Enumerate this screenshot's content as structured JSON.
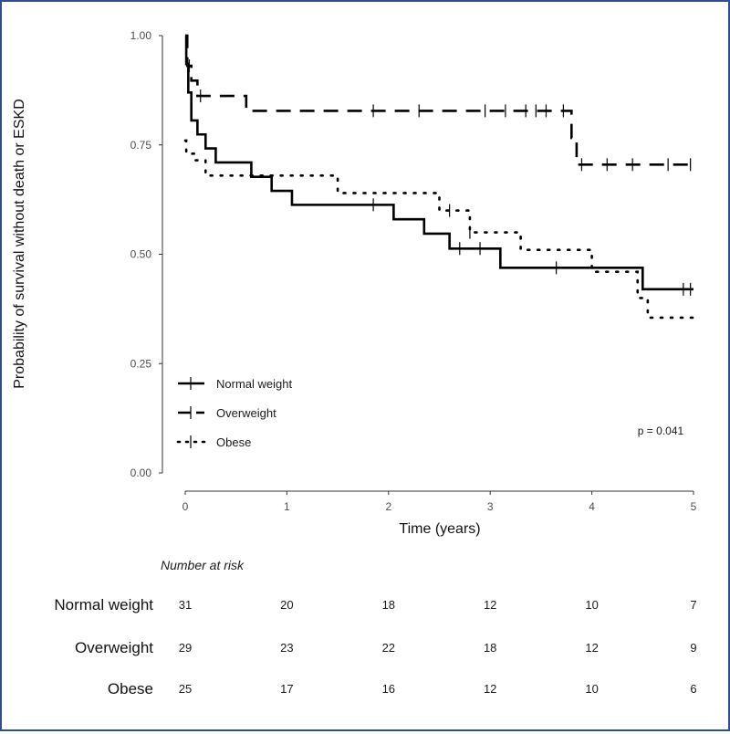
{
  "chart_data": {
    "type": "line",
    "subtype": "kaplan-meier step curves",
    "xlabel": "Time (years)",
    "ylabel": "Probability of survival without death or ESKD",
    "xlim": [
      0,
      5
    ],
    "ylim": [
      0,
      1
    ],
    "x_ticks": [
      "0",
      "1",
      "2",
      "3",
      "4",
      "5"
    ],
    "y_ticks": [
      "0.00",
      "0.25",
      "0.50",
      "0.75",
      "1.00"
    ],
    "grid": false,
    "legend_position": "bottom-left",
    "annotation": "p = 0.041",
    "series": [
      {
        "name": "Normal weight",
        "line_style": "solid",
        "color": "#000000",
        "steps": [
          [
            0,
            1.0
          ],
          [
            0.01,
            0.935
          ],
          [
            0.03,
            0.87
          ],
          [
            0.06,
            0.806
          ],
          [
            0.12,
            0.774
          ],
          [
            0.2,
            0.742
          ],
          [
            0.3,
            0.71
          ],
          [
            0.65,
            0.677
          ],
          [
            0.85,
            0.645
          ],
          [
            1.05,
            0.613
          ],
          [
            2.05,
            0.58
          ],
          [
            2.35,
            0.547
          ],
          [
            2.6,
            0.513
          ],
          [
            3.1,
            0.469
          ],
          [
            4.5,
            0.42
          ],
          [
            5.0,
            0.42
          ]
        ],
        "censor_times": [
          1.85,
          2.7,
          2.9,
          3.65,
          4.9,
          4.97
        ]
      },
      {
        "name": "Overweight",
        "line_style": "dashed",
        "color": "#000000",
        "steps": [
          [
            0,
            1.0
          ],
          [
            0.02,
            0.931
          ],
          [
            0.06,
            0.897
          ],
          [
            0.12,
            0.862
          ],
          [
            0.6,
            0.828
          ],
          [
            3.8,
            0.766
          ],
          [
            3.85,
            0.705
          ],
          [
            5.0,
            0.705
          ]
        ],
        "censor_times": [
          0.04,
          0.15,
          1.85,
          2.3,
          2.95,
          3.15,
          3.35,
          3.45,
          3.55,
          3.72,
          3.9,
          4.15,
          4.4,
          4.75,
          4.97
        ]
      },
      {
        "name": "Obese",
        "line_style": "dotted",
        "color": "#000000",
        "steps": [
          [
            0,
            0.76
          ],
          [
            0.01,
            0.73
          ],
          [
            0.1,
            0.715
          ],
          [
            0.2,
            0.68
          ],
          [
            1.5,
            0.64
          ],
          [
            2.5,
            0.6
          ],
          [
            2.8,
            0.55
          ],
          [
            3.3,
            0.51
          ],
          [
            4.0,
            0.46
          ],
          [
            4.45,
            0.4
          ],
          [
            4.55,
            0.355
          ],
          [
            5.0,
            0.355
          ]
        ],
        "censor_times": [
          2.6,
          2.8
        ]
      }
    ]
  },
  "risk_table": {
    "title": "Number at risk",
    "times": [
      0,
      1,
      2,
      3,
      4,
      5
    ],
    "rows": [
      {
        "label": "Normal weight",
        "values": [
          "31",
          "20",
          "18",
          "12",
          "10",
          "7"
        ]
      },
      {
        "label": "Overweight",
        "values": [
          "29",
          "23",
          "22",
          "18",
          "12",
          "9"
        ]
      },
      {
        "label": "Obese",
        "values": [
          "25",
          "17",
          "16",
          "12",
          "10",
          "6"
        ]
      }
    ]
  }
}
